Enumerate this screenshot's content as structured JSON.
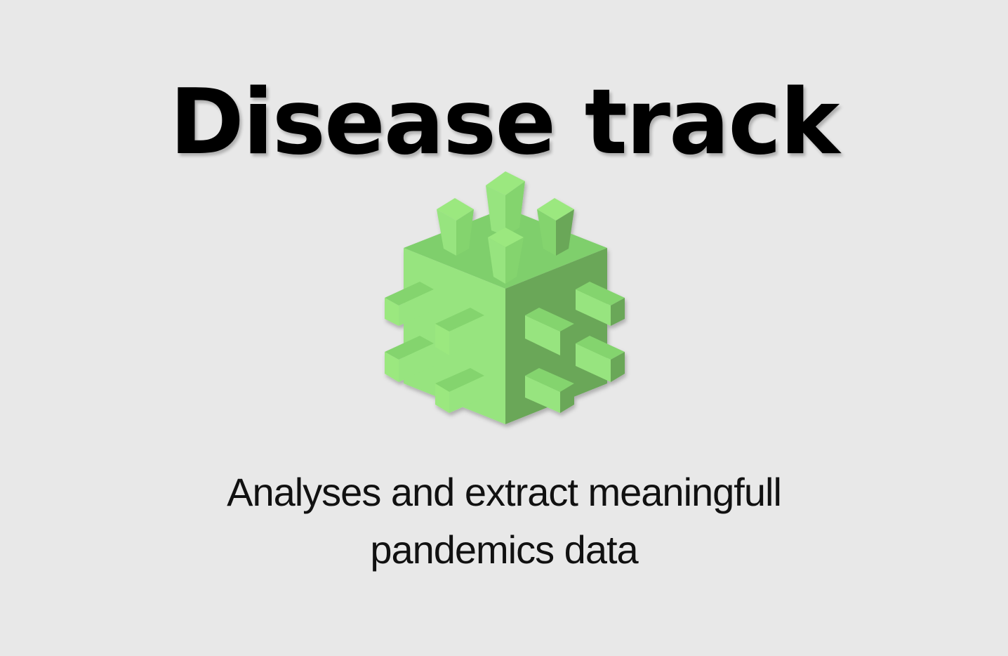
{
  "header": {
    "title": "Disease track"
  },
  "logo": {
    "icon": "virus-cube-icon",
    "colors": {
      "top": "#7fcf6c",
      "left": "#97e47f",
      "right": "#6aa758",
      "spike_light": "#9be87f",
      "spike_mid": "#84d46e",
      "spike_dark": "#5d9a4c"
    }
  },
  "tagline": {
    "line1": "Analyses and extract meaningfull",
    "line2": "pandemics data"
  }
}
